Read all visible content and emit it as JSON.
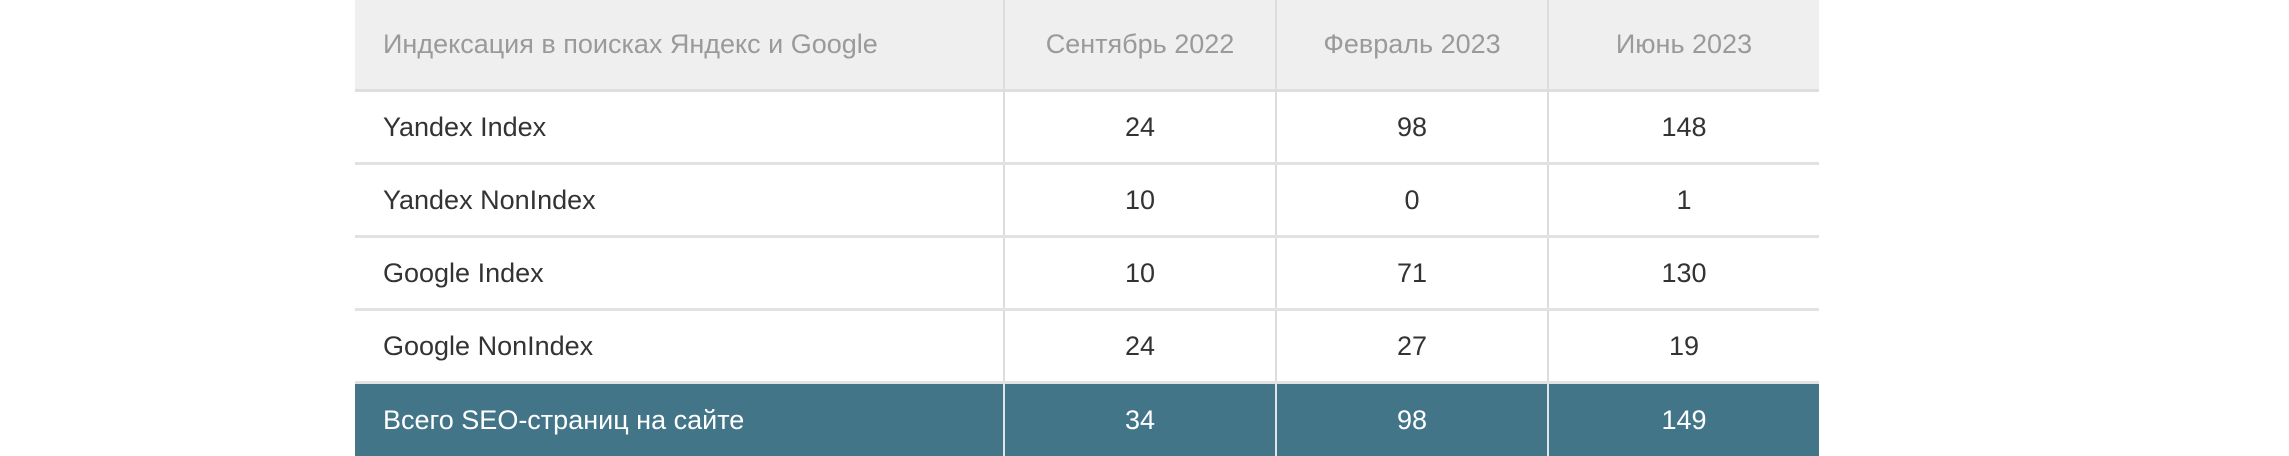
{
  "table": {
    "headers": [
      "Индексация в поисках Яндекс и Google",
      "Сентябрь 2022",
      "Февраль 2023",
      "Июнь 2023"
    ],
    "rows": [
      {
        "label": "Yandex Index",
        "values": [
          "24",
          "98",
          "148"
        ]
      },
      {
        "label": "Yandex NonIndex",
        "values": [
          "10",
          "0",
          "1"
        ]
      },
      {
        "label": "Google Index",
        "values": [
          "10",
          "71",
          "130"
        ]
      },
      {
        "label": "Google NonIndex",
        "values": [
          "24",
          "27",
          "19"
        ]
      }
    ],
    "total": {
      "label": "Всего SEO-страниц на сайте",
      "values": [
        "34",
        "98",
        "149"
      ]
    }
  },
  "colors": {
    "header_bg": "#efefef",
    "total_row_bg": "#437589"
  }
}
